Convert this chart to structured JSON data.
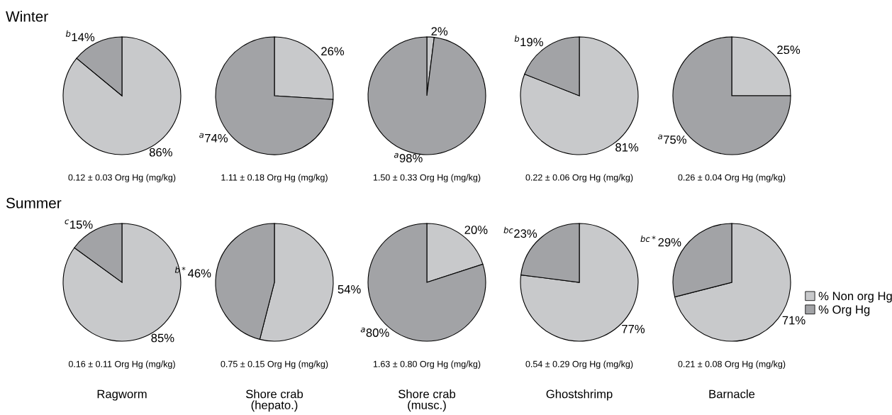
{
  "chart_data": [
    {
      "type": "pie",
      "title": "Winter",
      "categories": [
        null,
        null
      ],
      "values": [
        86,
        14
      ],
      "colors": [
        "#c8c9cb",
        "#a2a3a6"
      ],
      "value_labels": [
        "86%",
        "$^{b}$14%"
      ],
      "annotations": [
        "0.12 ± 0.03 Org Hg (mg/kg)"
      ]
    },
    {
      "type": "pie",
      "categories": [
        null,
        null
      ],
      "values": [
        26,
        74
      ],
      "colors": [
        "#c8c9cb",
        "#a2a3a6"
      ],
      "value_labels": [
        "26%",
        "$^{a}$74%"
      ],
      "annotations": [
        "1.11 ± 0.18 Org Hg (mg/kg)"
      ]
    },
    {
      "type": "pie",
      "categories": [
        null,
        null
      ],
      "values": [
        2,
        98
      ],
      "colors": [
        "#c8c9cb",
        "#a2a3a6"
      ],
      "value_labels": [
        "2%",
        "$^{a}$98%"
      ],
      "annotations": [
        "1.50 ± 0.33 Org Hg (mg/kg)"
      ]
    },
    {
      "type": "pie",
      "categories": [
        null,
        null
      ],
      "values": [
        81,
        19
      ],
      "colors": [
        "#c8c9cb",
        "#a2a3a6"
      ],
      "value_labels": [
        "81%",
        "$^{b}$19%"
      ],
      "annotations": [
        "0.22 ± 0.06 Org Hg (mg/kg)"
      ]
    },
    {
      "type": "pie",
      "categories": [
        null,
        null
      ],
      "values": [
        25,
        75
      ],
      "colors": [
        "#c8c9cb",
        "#a2a3a6"
      ],
      "value_labels": [
        "25%",
        "$^{a}$75%"
      ],
      "annotations": [
        "0.26 ± 0.04 Org Hg (mg/kg)"
      ]
    },
    {
      "type": "pie",
      "title": "Summer",
      "xlabel": "Ragworm",
      "categories": [
        null,
        null
      ],
      "values": [
        85,
        15
      ],
      "colors": [
        "#c8c9cb",
        "#a2a3a6"
      ],
      "value_labels": [
        "85%",
        "$^{c}$15%"
      ],
      "annotations": [
        "0.16 ± 0.11 Org Hg (mg/kg)"
      ]
    },
    {
      "type": "pie",
      "xlabel": "Shore crab\n(hepato.)",
      "categories": [
        null,
        null
      ],
      "values": [
        54,
        46
      ],
      "colors": [
        "#c8c9cb",
        "#a2a3a6"
      ],
      "value_labels": [
        "54%",
        "$^{b*}$46%"
      ],
      "annotations": [
        "0.75 ± 0.15 Org Hg (mg/kg)"
      ]
    },
    {
      "type": "pie",
      "xlabel": "Shore crab\n(musc.)",
      "categories": [
        null,
        null
      ],
      "values": [
        20,
        80
      ],
      "colors": [
        "#c8c9cb",
        "#a2a3a6"
      ],
      "value_labels": [
        "20%",
        "$^{a}$80%"
      ],
      "annotations": [
        "1.63 ± 0.80 Org Hg (mg/kg)"
      ]
    },
    {
      "type": "pie",
      "xlabel": "Ghostshrimp",
      "categories": [
        null,
        null
      ],
      "values": [
        77,
        23
      ],
      "colors": [
        "#c8c9cb",
        "#a2a3a6"
      ],
      "value_labels": [
        "77%",
        "$^{bc}$23%"
      ],
      "annotations": [
        "0.54 ± 0.29 Org Hg (mg/kg)"
      ]
    },
    {
      "type": "pie",
      "xlabel": "Barnacle",
      "legend": "bottom right",
      "categories": [
        "% Non org Hg",
        "% Org Hg"
      ],
      "values": [
        71,
        29
      ],
      "colors": [
        "#c8c9cb",
        "#a2a3a6"
      ],
      "value_labels": [
        "71%",
        "$^{bc*}$29%"
      ],
      "annotations": [
        "0.21 ± 0.08 Org Hg (mg/kg)"
      ]
    }
  ]
}
